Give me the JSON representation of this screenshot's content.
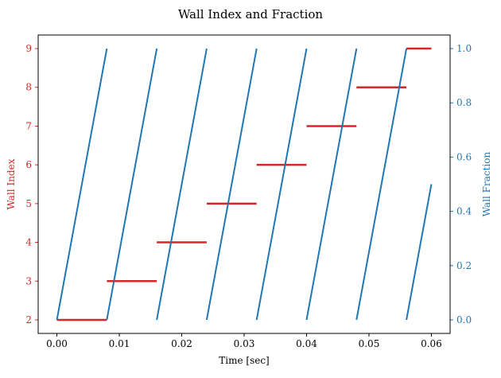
{
  "chart_data": {
    "type": "line",
    "title": "Wall Index and Fraction",
    "xlabel": "Time [sec]",
    "ylabel_left": "Wall Index",
    "ylabel_right": "Wall Fraction",
    "xlim": [
      -0.003,
      0.063
    ],
    "ylim_left": [
      1.65,
      9.35
    ],
    "ylim_right": [
      -0.05,
      1.05
    ],
    "xticks": [
      0.0,
      0.01,
      0.02,
      0.03,
      0.04,
      0.05,
      0.06
    ],
    "xtick_labels": [
      "0.00",
      "0.01",
      "0.02",
      "0.03",
      "0.04",
      "0.05",
      "0.06"
    ],
    "yticks_left": [
      2,
      3,
      4,
      5,
      6,
      7,
      8,
      9
    ],
    "ytick_labels_left": [
      "2",
      "3",
      "4",
      "5",
      "6",
      "7",
      "8",
      "9"
    ],
    "yticks_right": [
      0.0,
      0.2,
      0.4,
      0.6,
      0.8,
      1.0
    ],
    "ytick_labels_right": [
      "0.0",
      "0.2",
      "0.4",
      "0.6",
      "0.8",
      "1.0"
    ],
    "grid": false,
    "colors": {
      "left": "#d62728",
      "right": "#1f77b4"
    },
    "series": [
      {
        "axis": "left",
        "segments": [
          {
            "x": [
              0.0,
              0.008
            ],
            "y": [
              2,
              2
            ]
          },
          {
            "x": [
              0.008,
              0.016
            ],
            "y": [
              3,
              3
            ]
          },
          {
            "x": [
              0.016,
              0.024
            ],
            "y": [
              4,
              4
            ]
          },
          {
            "x": [
              0.024,
              0.032
            ],
            "y": [
              5,
              5
            ]
          },
          {
            "x": [
              0.032,
              0.04
            ],
            "y": [
              6,
              6
            ]
          },
          {
            "x": [
              0.04,
              0.048
            ],
            "y": [
              7,
              7
            ]
          },
          {
            "x": [
              0.048,
              0.056
            ],
            "y": [
              8,
              8
            ]
          },
          {
            "x": [
              0.056,
              0.06
            ],
            "y": [
              9,
              9
            ]
          }
        ]
      },
      {
        "axis": "right",
        "segments": [
          {
            "x": [
              0.0,
              0.008
            ],
            "y": [
              0.0,
              1.0
            ]
          },
          {
            "x": [
              0.008,
              0.016
            ],
            "y": [
              0.0,
              1.0
            ]
          },
          {
            "x": [
              0.016,
              0.024
            ],
            "y": [
              0.0,
              1.0
            ]
          },
          {
            "x": [
              0.024,
              0.032
            ],
            "y": [
              0.0,
              1.0
            ]
          },
          {
            "x": [
              0.032,
              0.04
            ],
            "y": [
              0.0,
              1.0
            ]
          },
          {
            "x": [
              0.04,
              0.048
            ],
            "y": [
              0.0,
              1.0
            ]
          },
          {
            "x": [
              0.048,
              0.056
            ],
            "y": [
              0.0,
              1.0
            ]
          },
          {
            "x": [
              0.056,
              0.06
            ],
            "y": [
              0.0,
              0.5
            ]
          }
        ]
      }
    ]
  }
}
